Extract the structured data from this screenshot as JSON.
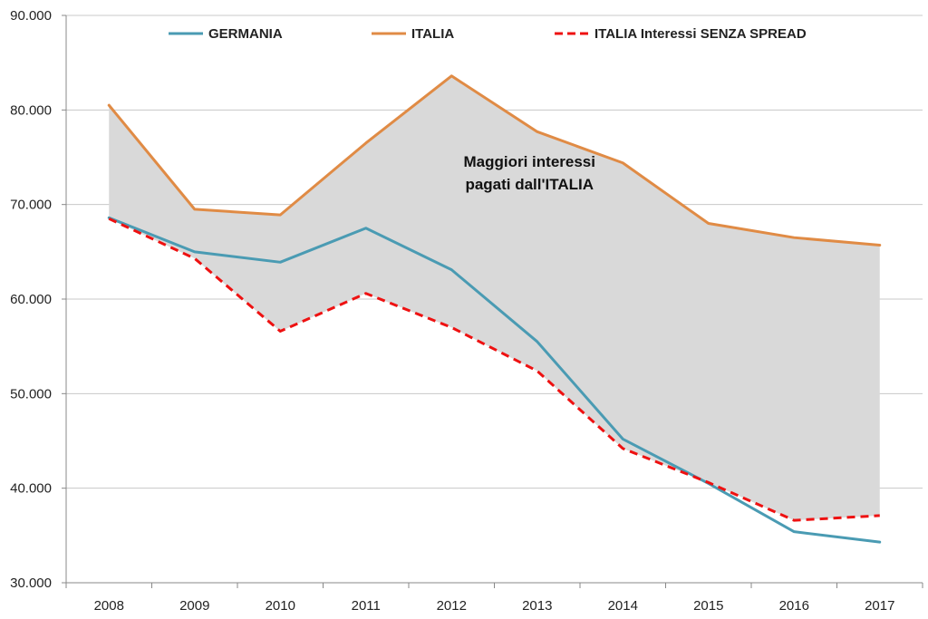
{
  "chart_data": {
    "type": "line",
    "title": "",
    "xlabel": "",
    "ylabel": "",
    "categories": [
      "2008",
      "2009",
      "2010",
      "2011",
      "2012",
      "2013",
      "2014",
      "2015",
      "2016",
      "2017"
    ],
    "ylim": [
      30000,
      90000
    ],
    "yticks": [
      30000,
      40000,
      50000,
      60000,
      70000,
      80000,
      90000
    ],
    "ytick_labels": [
      "30.000",
      "40.000",
      "50.000",
      "60.000",
      "70.000",
      "80.000",
      "90.000"
    ],
    "grid": "horizontal",
    "legend_position": "top",
    "series": [
      {
        "name": "GERMANIA",
        "color": "#4a9bb3",
        "style": "solid",
        "values": [
          68600,
          65000,
          63900,
          67500,
          63100,
          55500,
          45200,
          40500,
          35400,
          34300
        ]
      },
      {
        "name": "ITALIA",
        "color": "#e08b45",
        "style": "solid",
        "values": [
          80500,
          69500,
          68900,
          76500,
          83600,
          77700,
          74400,
          68000,
          66500,
          65700
        ]
      },
      {
        "name": "ITALIA Interessi SENZA SPREAD",
        "color": "#ee1111",
        "style": "dashed",
        "values": [
          68500,
          64300,
          56600,
          60600,
          57000,
          52400,
          44200,
          40600,
          36600,
          37100
        ]
      }
    ],
    "shaded_area": {
      "between": [
        "ITALIA",
        "ITALIA Interessi SENZA SPREAD"
      ],
      "color": "#d9d9d9"
    },
    "annotation": {
      "lines": [
        "Maggiori interessi",
        "pagati dall'ITALIA"
      ],
      "x": "2012",
      "y": 74000
    }
  }
}
